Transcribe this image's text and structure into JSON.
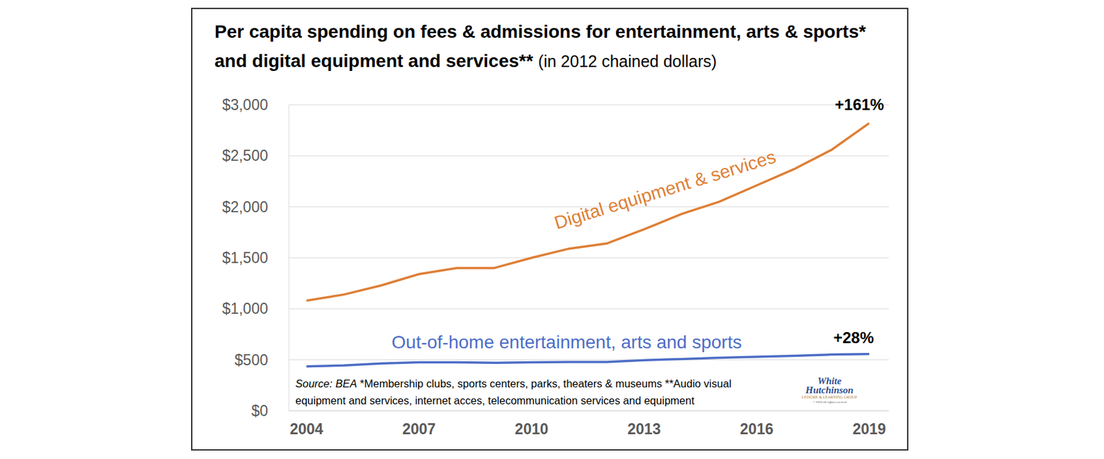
{
  "chart_data": {
    "type": "line",
    "title": "Per capita spending on fees & admissions for entertainment, arts & sports* and digital equipment and services**",
    "subtitle": "(in 2012 chained dollars)",
    "x": [
      2004,
      2005,
      2006,
      2007,
      2008,
      2009,
      2010,
      2011,
      2012,
      2013,
      2014,
      2015,
      2016,
      2017,
      2018,
      2019
    ],
    "series": [
      {
        "name": "Digital equipment & services",
        "color": "#DE7F35",
        "values": [
          1080,
          1140,
          1230,
          1340,
          1400,
          1400,
          1500,
          1590,
          1640,
          1780,
          1930,
          2050,
          2210,
          2370,
          2560,
          2820
        ],
        "end_label": "+161%"
      },
      {
        "name": "Out-of-home entertainment, arts and sports",
        "color": "#4D6DC6",
        "values": [
          435,
          445,
          465,
          475,
          475,
          470,
          475,
          478,
          478,
          497,
          508,
          520,
          530,
          540,
          552,
          557
        ],
        "end_label": "+28%"
      }
    ],
    "xlim": [
      2004,
      2019
    ],
    "xticks": [
      2004,
      2007,
      2010,
      2013,
      2016,
      2019
    ],
    "ylim": [
      0,
      3000
    ],
    "yticks": [
      {
        "value": 0,
        "label": "$0"
      },
      {
        "value": 500,
        "label": "$500"
      },
      {
        "value": 1000,
        "label": "$1,000"
      },
      {
        "value": 1500,
        "label": "$1,500"
      },
      {
        "value": 2000,
        "label": "$2,000"
      },
      {
        "value": 2500,
        "label": "$2,500"
      },
      {
        "value": 3000,
        "label": "$3,000"
      }
    ],
    "grid": true,
    "legend": false,
    "source": "Source: BEA",
    "notes": [
      "*Membership clubs, sports centers, parks, theaters & museums **Audio visual",
      "equipment and services, internet acces, telecommunication services and equipment"
    ],
    "logo": [
      "White",
      "Hutchinson",
      "LEISURE & LEARNING GROUP",
      "© 2020 all rights reserved"
    ]
  }
}
